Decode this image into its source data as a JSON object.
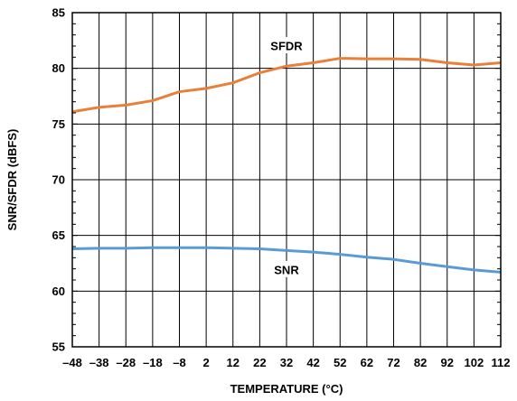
{
  "chart_data": {
    "type": "line",
    "xlabel": "TEMPERATURE (°C)",
    "ylabel": "SNR/SFDR (dBFS)",
    "xlim": [
      -48,
      112
    ],
    "ylim": [
      55,
      85
    ],
    "x_ticks": [
      -48,
      -38,
      -28,
      -18,
      -8,
      2,
      12,
      22,
      32,
      42,
      52,
      62,
      72,
      82,
      92,
      102,
      112
    ],
    "x_tick_labels": [
      "–48",
      "–38",
      "–28",
      "–18",
      "–8",
      "2",
      "12",
      "22",
      "32",
      "42",
      "52",
      "62",
      "72",
      "82",
      "92",
      "102",
      "112"
    ],
    "y_ticks": [
      55,
      60,
      65,
      70,
      75,
      80,
      85
    ],
    "y_minor_step": 1,
    "grid": true,
    "series": [
      {
        "name": "SFDR",
        "color": "#e8803a",
        "x": [
          -48,
          -38,
          -28,
          -18,
          -8,
          2,
          12,
          22,
          32,
          42,
          52,
          62,
          72,
          82,
          92,
          102,
          112
        ],
        "values": [
          76.1,
          76.5,
          76.7,
          77.1,
          77.9,
          78.2,
          78.7,
          79.6,
          80.2,
          80.5,
          80.9,
          80.85,
          80.85,
          80.8,
          80.5,
          80.3,
          80.5
        ],
        "label_at": [
          32,
          82
        ]
      },
      {
        "name": "SNR",
        "color": "#5b9bd5",
        "x": [
          -48,
          -38,
          -28,
          -18,
          -8,
          2,
          12,
          22,
          32,
          42,
          52,
          62,
          72,
          82,
          92,
          102,
          112
        ],
        "values": [
          63.8,
          63.85,
          63.85,
          63.9,
          63.9,
          63.9,
          63.85,
          63.8,
          63.65,
          63.5,
          63.3,
          63.05,
          62.85,
          62.5,
          62.2,
          61.9,
          61.7
        ],
        "label_at": [
          32,
          61.9
        ]
      }
    ]
  }
}
